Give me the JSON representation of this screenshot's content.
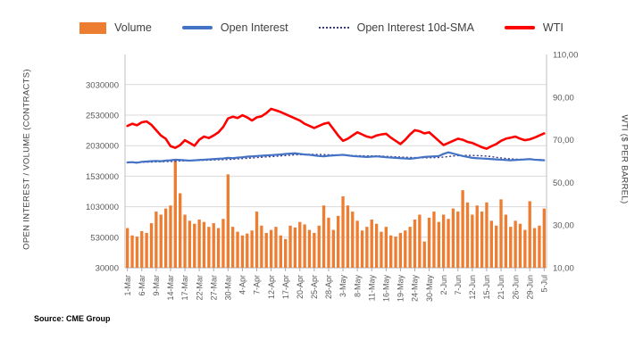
{
  "page": {
    "source_note": "Source: CME Group"
  },
  "chart_data": {
    "type": "combo",
    "legend_position": "top",
    "grid": "horizontal",
    "n_points": 88,
    "x_label_every": 3,
    "x_tick_labels": [
      "1-Mar",
      "6-Mar",
      "9-Mar",
      "14-Mar",
      "17-Mar",
      "22-Mar",
      "27-Mar",
      "30-Mar",
      "4-Apr",
      "7-Apr",
      "12-Apr",
      "17-Apr",
      "20-Apr",
      "25-Apr",
      "28-Apr",
      "3-May",
      "8-May",
      "11-May",
      "16-May",
      "19-May",
      "24-May",
      "30-May",
      "2-Jun",
      "7-Jun",
      "12-Jun",
      "15-Jun",
      "21-Jun",
      "26-Jun",
      "29-Jun",
      "5-Jul"
    ],
    "y_left": {
      "label": "OPEN INTEREST / VOLUME (CONTRACTS)",
      "ticks": [
        "30000",
        "530000",
        "1030000",
        "1530000",
        "2030000",
        "2530000",
        "3030000"
      ],
      "min": 30000,
      "max": 3030000
    },
    "y_right": {
      "label": "WTI ($ PER BARREL)",
      "ticks": [
        "10,00",
        "30,00",
        "50,00",
        "70,00",
        "90,00",
        "110,00"
      ],
      "min": 10,
      "max": 110
    },
    "series": [
      {
        "name": "Volume",
        "type": "bar",
        "axis": "left",
        "color": "#ED7D31",
        "values": [
          680000,
          560000,
          540000,
          630000,
          600000,
          760000,
          950000,
          900000,
          1000000,
          1050000,
          1780000,
          1250000,
          900000,
          800000,
          750000,
          820000,
          780000,
          700000,
          760000,
          680000,
          830000,
          1560000,
          700000,
          620000,
          560000,
          590000,
          640000,
          950000,
          720000,
          600000,
          650000,
          700000,
          560000,
          500000,
          720000,
          690000,
          780000,
          740000,
          650000,
          600000,
          720000,
          1050000,
          850000,
          650000,
          880000,
          1200000,
          1050000,
          950000,
          800000,
          640000,
          700000,
          820000,
          750000,
          620000,
          700000,
          560000,
          540000,
          600000,
          640000,
          700000,
          820000,
          900000,
          460000,
          850000,
          950000,
          780000,
          900000,
          830000,
          1000000,
          950000,
          1300000,
          1100000,
          900000,
          1050000,
          950000,
          1100000,
          800000,
          720000,
          1150000,
          900000,
          700000,
          800000,
          750000,
          650000,
          1120000,
          680000,
          720000,
          1000000
        ]
      },
      {
        "name": "Open Interest",
        "type": "line",
        "axis": "left",
        "color": "#4472C4",
        "values": [
          1755000,
          1760000,
          1750000,
          1765000,
          1770000,
          1775000,
          1780000,
          1775000,
          1785000,
          1790000,
          1800000,
          1795000,
          1790000,
          1785000,
          1790000,
          1795000,
          1800000,
          1805000,
          1810000,
          1815000,
          1820000,
          1830000,
          1825000,
          1835000,
          1840000,
          1850000,
          1855000,
          1860000,
          1865000,
          1870000,
          1875000,
          1880000,
          1885000,
          1895000,
          1900000,
          1905000,
          1895000,
          1885000,
          1880000,
          1870000,
          1860000,
          1855000,
          1865000,
          1870000,
          1875000,
          1880000,
          1870000,
          1860000,
          1855000,
          1850000,
          1845000,
          1850000,
          1855000,
          1848000,
          1840000,
          1835000,
          1830000,
          1825000,
          1820000,
          1815000,
          1825000,
          1835000,
          1845000,
          1850000,
          1855000,
          1860000,
          1895000,
          1920000,
          1900000,
          1880000,
          1860000,
          1845000,
          1830000,
          1825000,
          1820000,
          1815000,
          1810000,
          1805000,
          1800000,
          1795000,
          1790000,
          1795000,
          1800000,
          1805000,
          1810000,
          1800000,
          1795000,
          1790000
        ]
      },
      {
        "name": "Open Interest 10d-SMA",
        "type": "line",
        "style": "dotted",
        "axis": "left",
        "color": "#3A3A8C",
        "derived_from": "10-day simple moving average of Open Interest"
      },
      {
        "name": "WTI",
        "type": "line",
        "axis": "right",
        "color": "#FF0000",
        "values": [
          76.5,
          77.5,
          76.8,
          78.2,
          78.6,
          77.0,
          74.5,
          72.0,
          70.5,
          67.0,
          66.2,
          67.5,
          69.8,
          68.5,
          67.2,
          70.0,
          71.5,
          70.8,
          72.0,
          73.5,
          76.0,
          80.0,
          80.8,
          80.2,
          81.5,
          80.5,
          79.0,
          80.5,
          81.0,
          82.5,
          84.5,
          83.8,
          83.0,
          82.0,
          81.0,
          80.0,
          79.0,
          77.5,
          76.5,
          75.5,
          76.5,
          77.5,
          78.0,
          75.0,
          72.0,
          69.5,
          70.5,
          72.0,
          73.5,
          72.5,
          71.5,
          71.0,
          72.0,
          72.5,
          72.8,
          71.0,
          69.5,
          68.0,
          70.0,
          72.5,
          74.5,
          74.0,
          73.0,
          73.5,
          71.5,
          69.5,
          67.5,
          68.5,
          69.5,
          70.5,
          70.0,
          69.0,
          68.5,
          67.5,
          66.5,
          65.8,
          67.0,
          68.0,
          69.5,
          70.5,
          71.0,
          71.5,
          70.5,
          69.8,
          70.2,
          71.0,
          72.0,
          73.0
        ]
      }
    ]
  }
}
